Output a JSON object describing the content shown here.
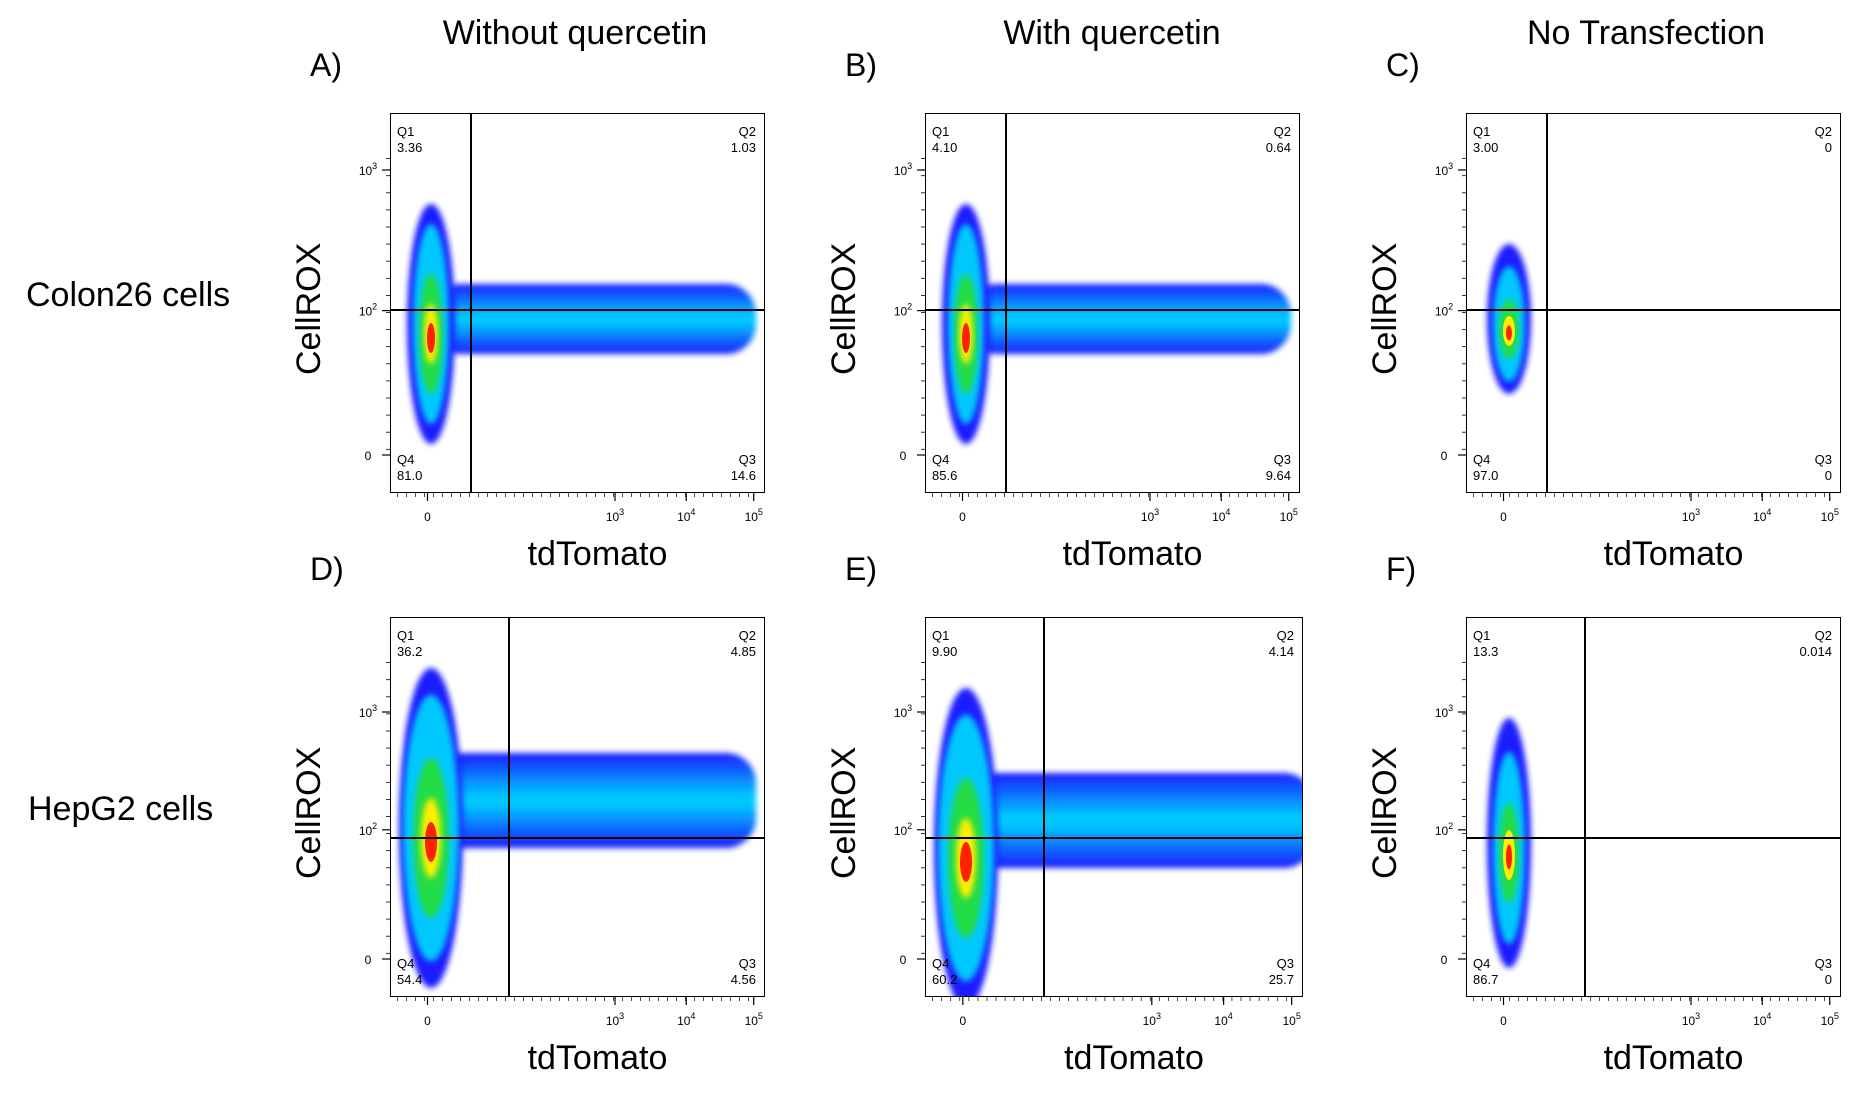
{
  "column_headers": [
    "Without quercetin",
    "With quercetin",
    "No Transfection"
  ],
  "row_headers": [
    "Colon26 cells",
    "HepG2 cells"
  ],
  "chart_data": [
    {
      "panel": "A)",
      "type": "scatter",
      "title": "",
      "xlabel": "tdTomato",
      "ylabel": "CellROX",
      "x_ticks": [
        "0",
        "10^3",
        "10^4",
        "10^5"
      ],
      "y_ticks": [
        "0",
        "10^2",
        "10^3"
      ],
      "quadrants": {
        "Q1": "3.36",
        "Q2": "1.03",
        "Q3": "14.6",
        "Q4": "81.0"
      },
      "population": "spread"
    },
    {
      "panel": "B)",
      "type": "scatter",
      "title": "",
      "xlabel": "tdTomato",
      "ylabel": "CellROX",
      "x_ticks": [
        "0",
        "10^3",
        "10^4",
        "10^5"
      ],
      "y_ticks": [
        "0",
        "10^2",
        "10^3"
      ],
      "quadrants": {
        "Q1": "4.10",
        "Q2": "0.64",
        "Q3": "9.64",
        "Q4": "85.6"
      },
      "population": "spread"
    },
    {
      "panel": "C)",
      "type": "scatter",
      "title": "",
      "xlabel": "tdTomato",
      "ylabel": "CellROX",
      "x_ticks": [
        "0",
        "10^3",
        "10^4",
        "10^5"
      ],
      "y_ticks": [
        "0",
        "10^2",
        "10^3"
      ],
      "quadrants": {
        "Q1": "3.00",
        "Q2": "0",
        "Q3": "0",
        "Q4": "97.0"
      },
      "population": "compact"
    },
    {
      "panel": "D)",
      "type": "scatter",
      "title": "",
      "xlabel": "tdTomato",
      "ylabel": "CellROX",
      "x_ticks": [
        "0",
        "10^3",
        "10^4",
        "10^5"
      ],
      "y_ticks": [
        "0",
        "10^2",
        "10^3"
      ],
      "quadrants": {
        "Q1": "36.2",
        "Q2": "4.85",
        "Q3": "4.56",
        "Q4": "54.4"
      },
      "population": "spread"
    },
    {
      "panel": "E)",
      "type": "scatter",
      "title": "",
      "xlabel": "tdTomato",
      "ylabel": "CellROX",
      "x_ticks": [
        "0",
        "10^3",
        "10^4",
        "10^5"
      ],
      "y_ticks": [
        "0",
        "10^2",
        "10^3"
      ],
      "quadrants": {
        "Q1": "9.90",
        "Q2": "4.14",
        "Q3": "25.7",
        "Q4": "60.2"
      },
      "population": "spread"
    },
    {
      "panel": "F)",
      "type": "scatter",
      "title": "",
      "xlabel": "tdTomato",
      "ylabel": "CellROX",
      "x_ticks": [
        "0",
        "10^3",
        "10^4",
        "10^5"
      ],
      "y_ticks": [
        "0",
        "10^2",
        "10^3"
      ],
      "quadrants": {
        "Q1": "13.3",
        "Q2": "0.014",
        "Q3": "0",
        "Q4": "86.7"
      },
      "population": "compact"
    }
  ],
  "colors": {
    "low": "#1a1aff",
    "mid": "#00c8ff",
    "green": "#22dd44",
    "high": "#ffee00",
    "peak": "#ff2200"
  }
}
